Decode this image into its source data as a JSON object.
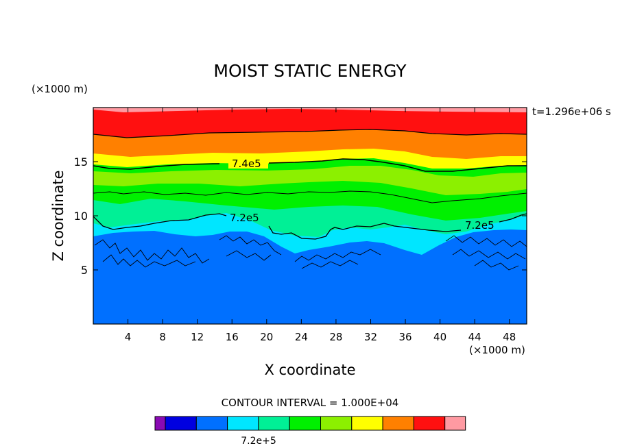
{
  "chart_data": {
    "type": "heatmap",
    "title": "MOIST STATIC ENERGY",
    "xlabel": "X coordinate",
    "ylabel": "Z coordinate",
    "x_unit": "(×1000 m)",
    "y_unit": "(×1000 m)",
    "time_label": "t=1.296e+06 s",
    "xlim": [
      0,
      50
    ],
    "ylim": [
      0,
      20
    ],
    "x_ticks": [
      4,
      8,
      12,
      16,
      20,
      24,
      28,
      32,
      36,
      40,
      44,
      48
    ],
    "y_ticks": [
      5,
      10,
      15
    ],
    "contour_interval_label": "CONTOUR INTERVAL = 1.000E+04",
    "contour_labels": [
      "7.4e5",
      "7.2e5",
      "7.2e5"
    ],
    "contour_label_values": [
      740000,
      720000,
      720000
    ],
    "colorbar": {
      "colors": [
        "#8a0ab4",
        "#0000e0",
        "#0070ff",
        "#00e6ff",
        "#00f096",
        "#00f000",
        "#8cf000",
        "#ffff00",
        "#ff8000",
        "#ff1010",
        "#ff9aa2"
      ],
      "tick_label": "7.2e+5",
      "tick_value": 720000
    },
    "colors": {
      "boundary_layer": "#0070ff",
      "cyan_band": "#00e6ff",
      "teal_band": "#00f096",
      "green_band": "#00f000",
      "lime_band": "#8cf000",
      "yellow_band": "#ffff00",
      "orange_band": "#ff8000",
      "red_band": "#ff1010",
      "pink_band": "#ff9aa2"
    }
  }
}
